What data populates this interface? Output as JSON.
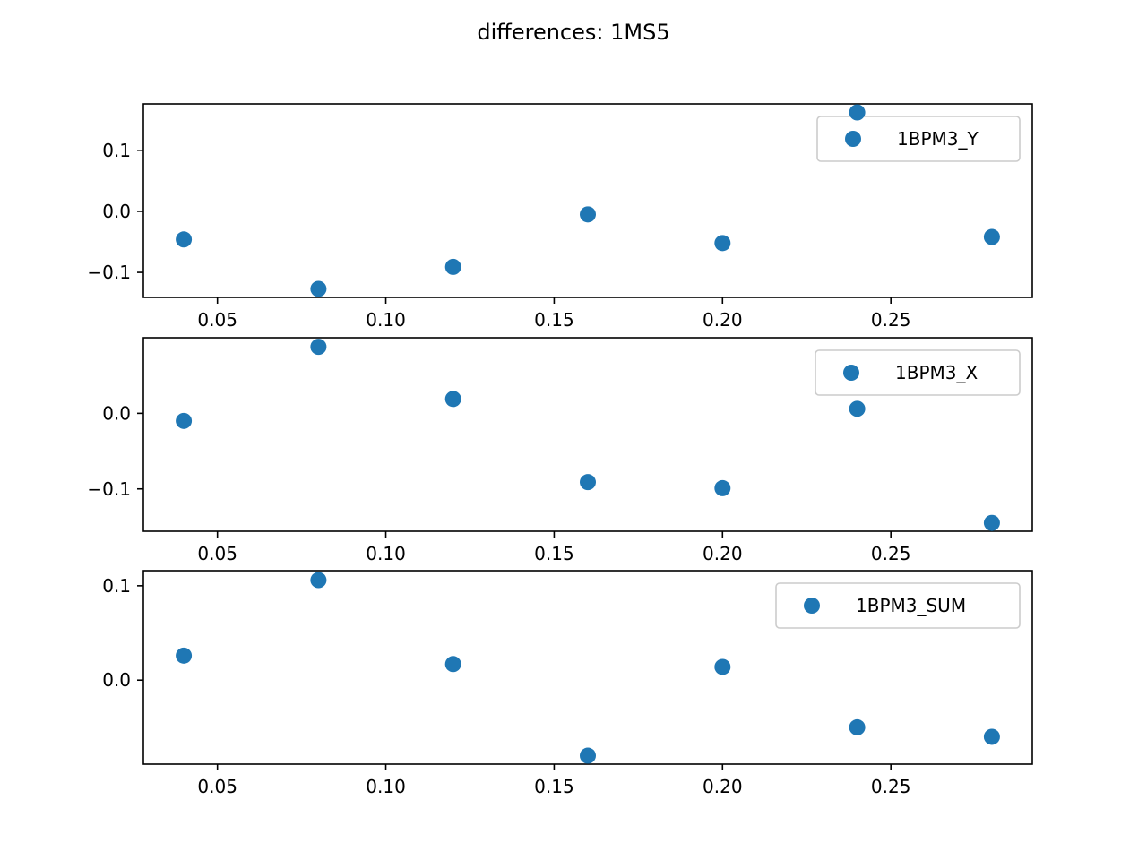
{
  "figure": {
    "title": "differences: 1MS5"
  },
  "chart_data": [
    {
      "type": "scatter",
      "x": [
        0.04,
        0.08,
        0.12,
        0.16,
        0.2,
        0.24,
        0.28
      ],
      "series": [
        {
          "name": "1BPM3_Y",
          "values": [
            -0.046,
            -0.127,
            -0.091,
            -0.005,
            -0.052,
            0.162,
            -0.042
          ],
          "color": "#1f77b4"
        }
      ],
      "xlim": [
        0.028,
        0.292
      ],
      "ylim": [
        -0.141,
        0.176
      ],
      "xticks": [
        0.05,
        0.1,
        0.15,
        0.2,
        0.25
      ],
      "xtick_labels": [
        "0.05",
        "0.10",
        "0.15",
        "0.20",
        "0.25"
      ],
      "yticks": [
        0.1,
        0.0,
        -0.1
      ],
      "ytick_labels": [
        "0.1",
        "0.0",
        "−0.1"
      ],
      "legend": "upper right",
      "grid": false,
      "xlabel": "",
      "ylabel": ""
    },
    {
      "type": "scatter",
      "x": [
        0.04,
        0.08,
        0.12,
        0.16,
        0.2,
        0.24,
        0.28
      ],
      "series": [
        {
          "name": "1BPM3_X",
          "values": [
            -0.01,
            0.088,
            0.019,
            -0.091,
            -0.099,
            0.006,
            -0.145
          ],
          "color": "#1f77b4"
        }
      ],
      "xlim": [
        0.028,
        0.292
      ],
      "ylim": [
        -0.156,
        0.1
      ],
      "xticks": [
        0.05,
        0.1,
        0.15,
        0.2,
        0.25
      ],
      "xtick_labels": [
        "0.05",
        "0.10",
        "0.15",
        "0.20",
        "0.25"
      ],
      "yticks": [
        0.0,
        -0.1
      ],
      "ytick_labels": [
        "0.0",
        "−0.1"
      ],
      "legend": "upper right",
      "grid": false,
      "xlabel": "",
      "ylabel": ""
    },
    {
      "type": "scatter",
      "x": [
        0.04,
        0.08,
        0.12,
        0.16,
        0.2,
        0.24,
        0.28
      ],
      "series": [
        {
          "name": "1BPM3_SUM",
          "values": [
            0.026,
            0.106,
            0.017,
            -0.08,
            0.014,
            -0.05,
            -0.06
          ],
          "color": "#1f77b4"
        }
      ],
      "xlim": [
        0.028,
        0.292
      ],
      "ylim": [
        -0.089,
        0.116
      ],
      "xticks": [
        0.05,
        0.1,
        0.15,
        0.2,
        0.25
      ],
      "xtick_labels": [
        "0.05",
        "0.10",
        "0.15",
        "0.20",
        "0.25"
      ],
      "yticks": [
        0.1,
        0.0
      ],
      "ytick_labels": [
        "0.1",
        "0.0"
      ],
      "legend": "upper right",
      "grid": false,
      "xlabel": "",
      "ylabel": ""
    }
  ]
}
